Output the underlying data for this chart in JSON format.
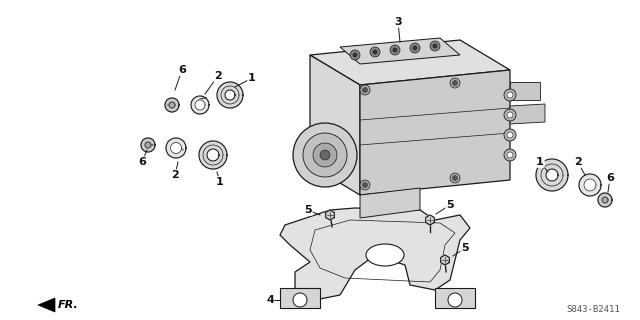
{
  "bg_color": "#ffffff",
  "line_color": "#1a1a1a",
  "part_number_text": "S843-B2411",
  "fr_label": "FR.",
  "fig_width": 6.4,
  "fig_height": 3.2,
  "dpi": 100
}
